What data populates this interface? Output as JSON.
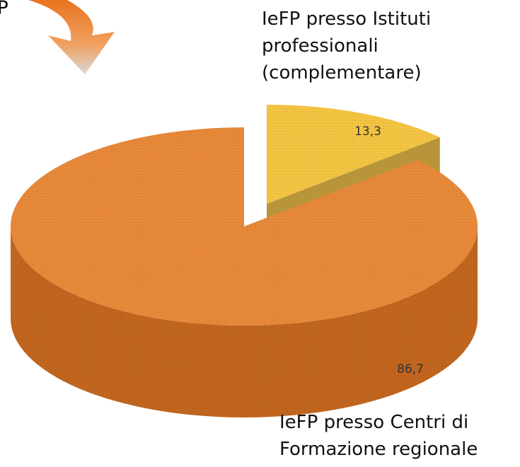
{
  "chart_data": {
    "type": "pie",
    "annotation": "P",
    "categories": [
      "IeFP presso Istituti professionali (complementare)",
      "IeFP presso Centri di Formazione regionale"
    ],
    "values": [
      13.3,
      86.7
    ],
    "value_labels": [
      "13,3",
      "86,7"
    ],
    "colors": [
      "#f4c542",
      "#e8893a"
    ],
    "side_colors": [
      "#b8953a",
      "#c2661f"
    ]
  }
}
